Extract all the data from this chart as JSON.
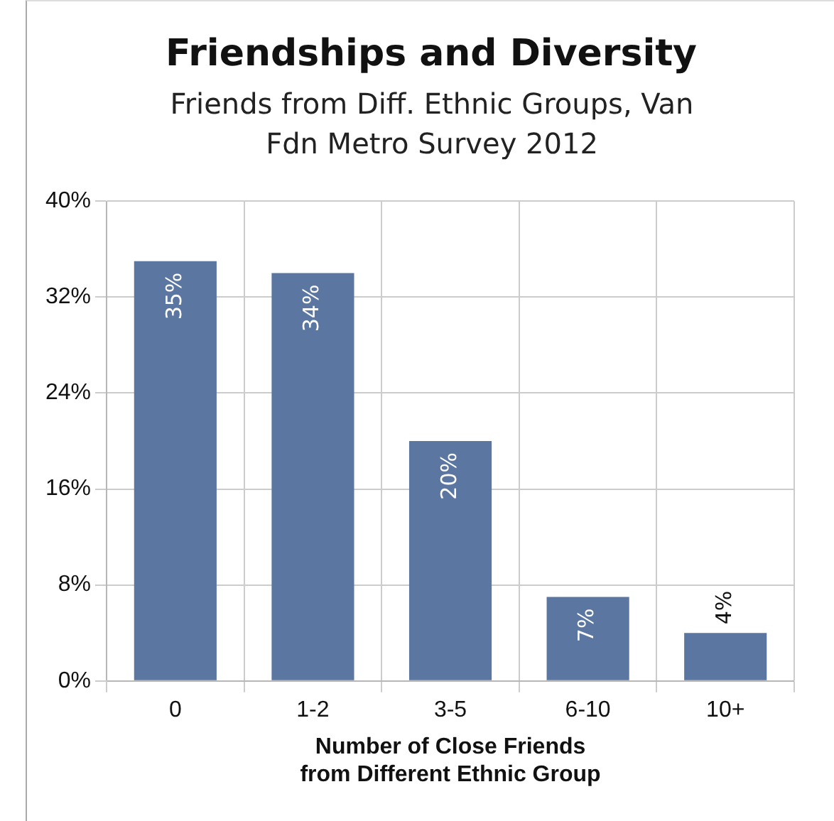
{
  "chart_data": {
    "type": "bar",
    "title": "Friendships and Diversity",
    "subtitle": "Friends from Diff. Ethnic Groups, Van Fdn Metro Survey 2012",
    "xlabel": "Number of Close Friends\nfrom Different Ethnic Group",
    "categories": [
      "0",
      "1-2",
      "3-5",
      "6-10",
      "10+"
    ],
    "values": [
      35,
      34,
      20,
      7,
      4
    ],
    "value_labels": [
      "35%",
      "34%",
      "20%",
      "7%",
      "4%"
    ],
    "color": "#5b76a0",
    "ylim": [
      0,
      40
    ],
    "yticks": [
      {
        "value": 0,
        "label": "0%"
      },
      {
        "value": 8,
        "label": "8%"
      },
      {
        "value": 16,
        "label": "16%"
      },
      {
        "value": 24,
        "label": "24%"
      },
      {
        "value": 32,
        "label": "32%"
      },
      {
        "value": 40,
        "label": "40%"
      }
    ],
    "grid": true,
    "legend": false
  }
}
